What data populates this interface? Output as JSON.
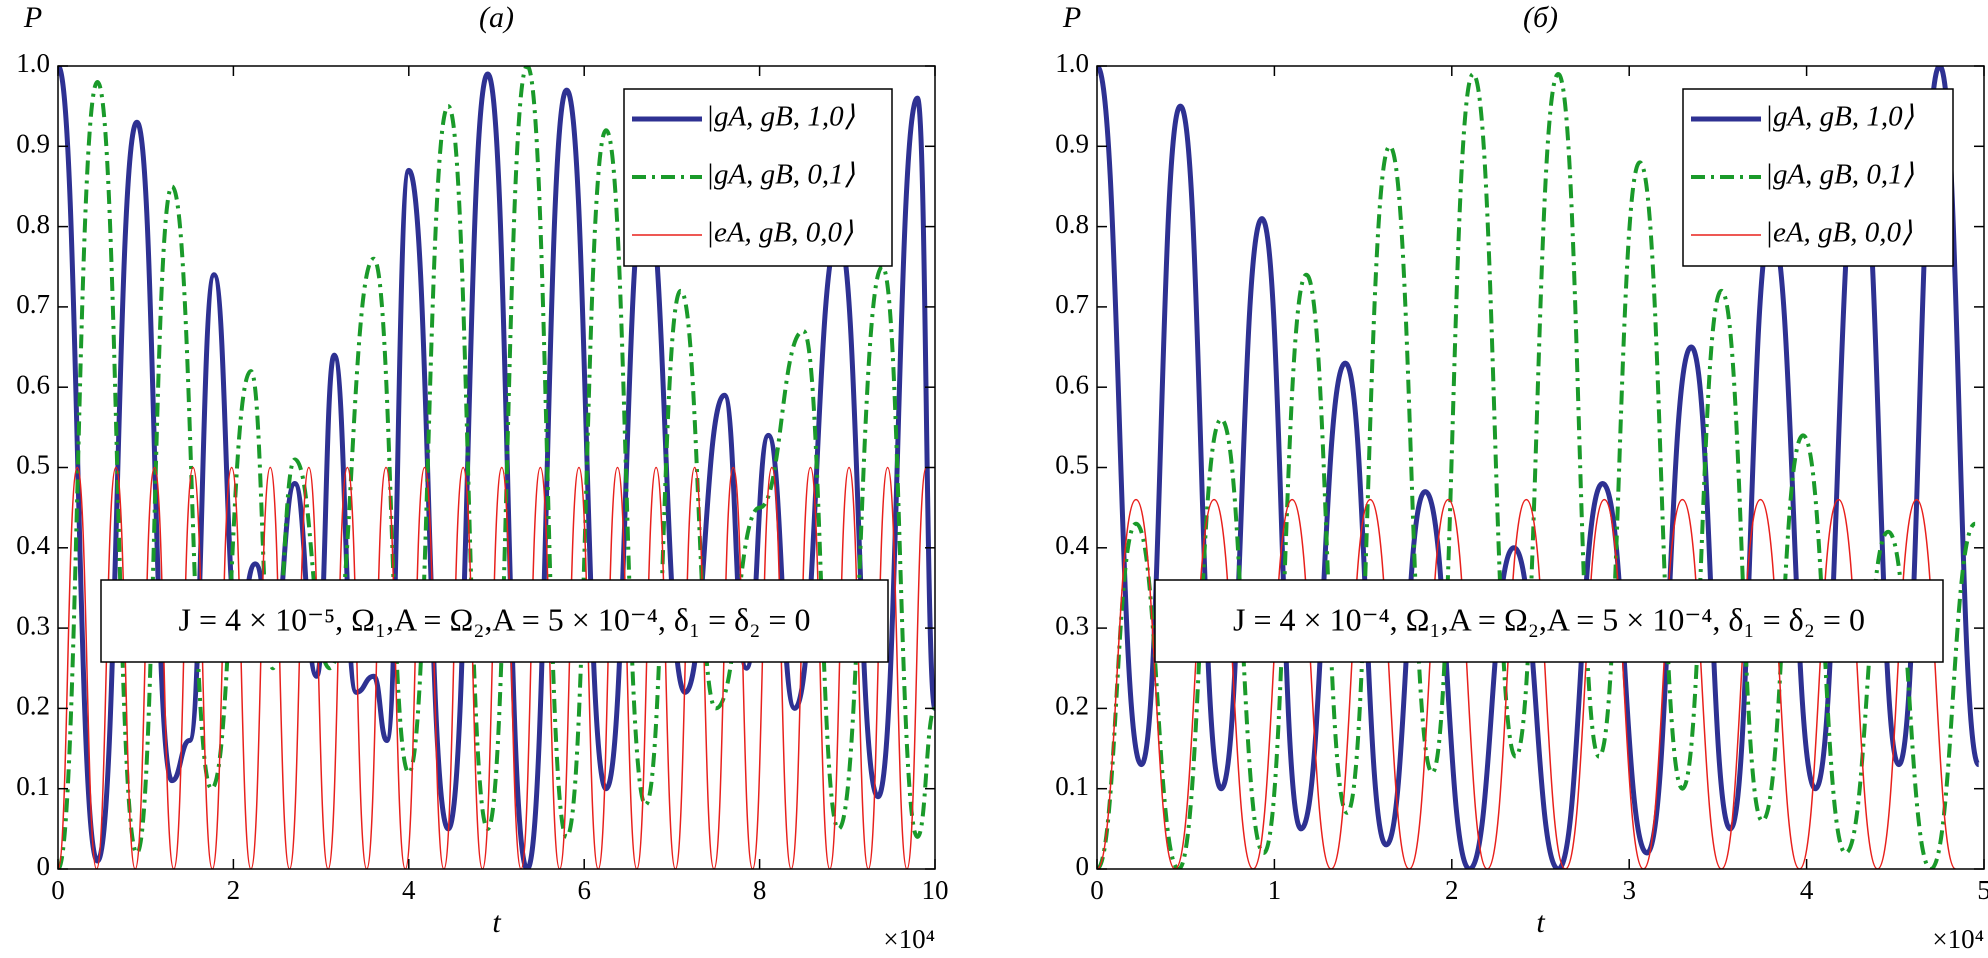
{
  "chart_data": [
    {
      "type": "line",
      "title": "(a)",
      "y_label": "P",
      "x_label": "t",
      "x_multiplier": "×10⁴",
      "xlim": [
        0,
        10
      ],
      "xticks": [
        0,
        2,
        4,
        6,
        8,
        10
      ],
      "ylim": [
        0,
        1
      ],
      "yticks": [
        0,
        0.1,
        0.2,
        0.3,
        0.4,
        0.5,
        0.6,
        0.7,
        0.8,
        0.9,
        {
          "value": 1,
          "label": "1.0"
        }
      ],
      "legend": "upper right",
      "annotation": "J = 4 × 10⁻⁵, Ω₁,A = Ω₂,A = 5 × 10⁻⁴, δ₁ = δ₂ = 0",
      "series": [
        {
          "name": "|gA, gB, 1,0⟩",
          "color": "#2e3192",
          "style": "solid",
          "width": 5,
          "x": [
            0,
            0.45,
            0.9,
            1.3,
            1.5,
            1.78,
            2.05,
            2.25,
            2.45,
            2.7,
            2.95,
            3.15,
            3.4,
            3.6,
            3.75,
            4.0,
            4.45,
            4.9,
            5.35,
            5.8,
            6.25,
            6.7,
            7.15,
            7.6,
            7.85,
            8.1,
            8.4,
            8.9,
            9.35,
            9.8,
            10.0
          ],
          "values": [
            1.0,
            0.01,
            0.93,
            0.11,
            0.16,
            0.74,
            0.3,
            0.38,
            0.28,
            0.48,
            0.24,
            0.64,
            0.22,
            0.24,
            0.16,
            0.87,
            0.05,
            0.99,
            0.0,
            0.97,
            0.1,
            0.85,
            0.22,
            0.59,
            0.25,
            0.54,
            0.2,
            0.79,
            0.09,
            0.96,
            0.2
          ]
        },
        {
          "name": "|gA, gB, 0,1⟩",
          "color": "#1a9a2a",
          "style": "dashdot",
          "width": 4,
          "x": [
            0,
            0.45,
            0.9,
            1.3,
            1.75,
            2.2,
            2.45,
            2.7,
            3.1,
            3.6,
            4.0,
            4.45,
            4.9,
            5.35,
            5.8,
            6.25,
            6.7,
            7.1,
            7.5,
            8.0,
            8.5,
            8.9,
            9.4,
            9.8,
            10.0
          ],
          "values": [
            0,
            0.98,
            0.02,
            0.85,
            0.1,
            0.62,
            0.25,
            0.51,
            0.25,
            0.76,
            0.12,
            0.95,
            0.05,
            1.0,
            0.04,
            0.92,
            0.08,
            0.72,
            0.2,
            0.45,
            0.67,
            0.05,
            0.75,
            0.04,
            0.2
          ]
        },
        {
          "name": "|eA, gB, 0,0⟩",
          "color": "#e8201c",
          "style": "solid",
          "width": 1.5,
          "x": [
            0,
            0.22,
            0.44,
            0.66,
            0.88,
            1.1,
            1.32,
            1.54,
            1.76,
            1.98,
            2.2,
            2.42,
            2.64,
            2.86,
            3.08,
            3.3,
            3.52,
            3.74,
            3.96,
            4.18,
            4.4,
            4.62,
            4.84,
            5.06,
            5.28,
            5.5,
            5.72,
            5.94,
            6.16,
            6.38,
            6.6,
            6.82,
            7.04,
            7.26,
            7.48,
            7.7,
            7.92,
            8.14,
            8.36,
            8.58,
            8.8,
            9.02,
            9.24,
            9.46,
            9.68,
            9.9
          ],
          "values": [
            0,
            0.5,
            0,
            0.5,
            0,
            0.5,
            0,
            0.5,
            0,
            0.5,
            0,
            0.5,
            0,
            0.5,
            0,
            0.5,
            0,
            0.5,
            0,
            0.5,
            0,
            0.5,
            0,
            0.5,
            0,
            0.5,
            0,
            0.5,
            0,
            0.5,
            0,
            0.5,
            0,
            0.5,
            0,
            0.5,
            0,
            0.5,
            0,
            0.5,
            0,
            0.5,
            0,
            0.5,
            0,
            0.5
          ]
        }
      ]
    },
    {
      "type": "line",
      "title": "(б)",
      "y_label": "P",
      "x_label": "t",
      "x_multiplier": "×10⁴",
      "xlim": [
        0,
        5
      ],
      "xticks": [
        0,
        1,
        2,
        3,
        4,
        5
      ],
      "ylim": [
        0,
        1
      ],
      "yticks": [
        0,
        0.1,
        0.2,
        0.3,
        0.4,
        0.5,
        0.6,
        0.7,
        0.8,
        0.9,
        {
          "value": 1,
          "label": "1.0"
        }
      ],
      "legend": "upper right",
      "annotation": "J = 4 × 10⁻⁴, Ω₁,A = Ω₂,A = 5 × 10⁻⁴, δ₁ = δ₂ = 0",
      "series": [
        {
          "name": "|gA, gB, 1,0⟩",
          "color": "#2e3192",
          "style": "solid",
          "width": 5,
          "x": [
            0,
            0.25,
            0.47,
            0.7,
            0.93,
            1.15,
            1.4,
            1.63,
            1.85,
            2.1,
            2.35,
            2.6,
            2.85,
            3.1,
            3.35,
            3.57,
            3.8,
            4.05,
            4.3,
            4.52,
            4.75,
            4.97
          ],
          "values": [
            1.0,
            0.13,
            0.95,
            0.1,
            0.81,
            0.05,
            0.63,
            0.03,
            0.47,
            0.0,
            0.4,
            0.0,
            0.48,
            0.02,
            0.65,
            0.05,
            0.8,
            0.1,
            0.9,
            0.13,
            1.0,
            0.13
          ]
        },
        {
          "name": "|gA, gB, 0,1⟩",
          "color": "#1a9a2a",
          "style": "dashdot",
          "width": 4,
          "x": [
            0,
            0.22,
            0.46,
            0.7,
            0.94,
            1.18,
            1.41,
            1.65,
            1.89,
            2.12,
            2.36,
            2.6,
            2.83,
            3.06,
            3.3,
            3.52,
            3.75,
            3.98,
            4.22,
            4.46,
            4.7,
            4.95
          ],
          "values": [
            0,
            0.43,
            0.0,
            0.56,
            0.02,
            0.74,
            0.07,
            0.9,
            0.12,
            0.99,
            0.14,
            0.99,
            0.14,
            0.88,
            0.1,
            0.72,
            0.06,
            0.54,
            0.02,
            0.42,
            0.0,
            0.43
          ]
        },
        {
          "name": "|eA, gB, 0,0⟩",
          "color": "#e8201c",
          "style": "solid",
          "width": 1.5,
          "x": [
            0,
            0.22,
            0.44,
            0.66,
            0.88,
            1.1,
            1.32,
            1.54,
            1.76,
            1.98,
            2.2,
            2.42,
            2.64,
            2.86,
            3.08,
            3.3,
            3.52,
            3.74,
            3.96,
            4.18,
            4.4,
            4.62,
            4.84
          ],
          "values": [
            0,
            0.46,
            0,
            0.46,
            0,
            0.46,
            0,
            0.46,
            0,
            0.46,
            0,
            0.46,
            0,
            0.46,
            0,
            0.46,
            0,
            0.46,
            0,
            0.46,
            0,
            0.46,
            0
          ]
        }
      ]
    }
  ]
}
